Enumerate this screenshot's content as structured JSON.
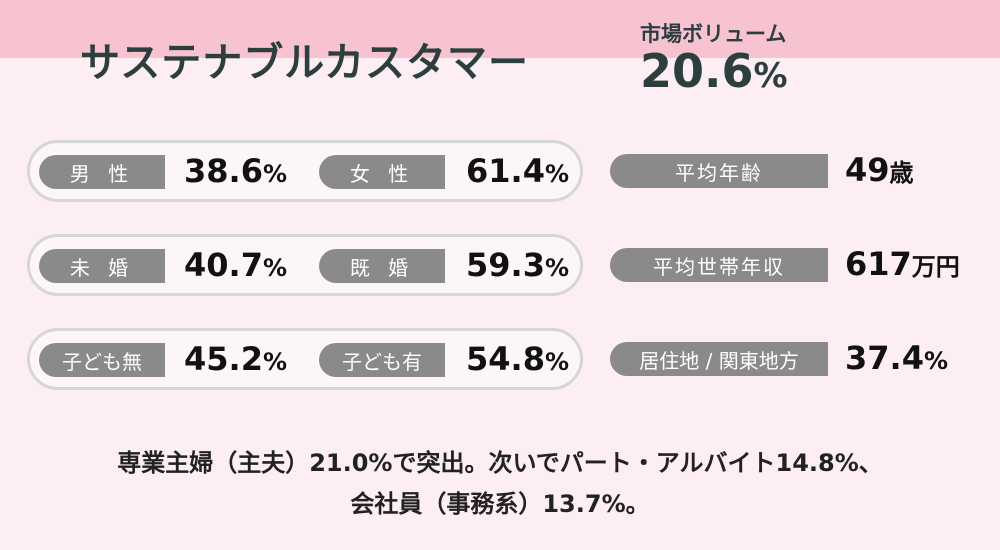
{
  "header": {
    "title": "サステナブルカスタマー",
    "market_volume_label": "市場ボリューム",
    "market_volume_number": "20.6",
    "market_volume_unit": "%"
  },
  "pairs": [
    {
      "left_label": "男 性",
      "left_number": "38.6",
      "right_label": "女 性",
      "right_number": "61.4",
      "unit": "%"
    },
    {
      "left_label": "未 婚",
      "left_number": "40.7",
      "right_label": "既 婚",
      "right_number": "59.3",
      "unit": "%"
    },
    {
      "left_label": "子ども無",
      "left_number": "45.2",
      "right_label": "子ども有",
      "right_number": "54.8",
      "unit": "%"
    }
  ],
  "stats": [
    {
      "label": "平均年齢",
      "number": "49",
      "unit": "歳"
    },
    {
      "label": "平均世帯年収",
      "number": "617",
      "unit": "万円"
    },
    {
      "label": "居住地 / 関東地方",
      "number": "37.4",
      "unit": "%"
    }
  ],
  "summary": {
    "line1": "専業主婦（主夫）21.0%で突出。次いでパート・アルバイト14.8%、",
    "line2": "会社員（事務系）13.7%。"
  },
  "colors": {
    "header_band": "#f7c3d1",
    "background": "#fdeef3",
    "tag_gray": "#8a8a8a",
    "title_text": "#2c3e3e"
  }
}
